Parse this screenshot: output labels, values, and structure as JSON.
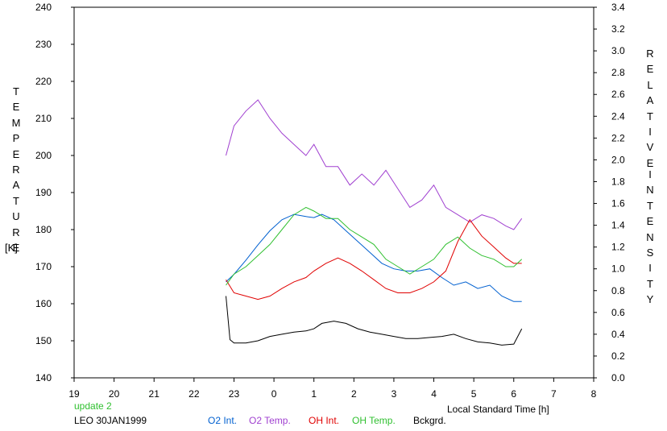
{
  "chart_data": {
    "type": "line",
    "left_axis": {
      "label_letters": [
        "T",
        "E",
        "M",
        "P",
        "E",
        "R",
        "A",
        "T",
        "U",
        "R",
        "E"
      ],
      "unit": "[K]",
      "range": [
        140,
        240
      ],
      "ticks": [
        "140",
        "150",
        "160",
        "170",
        "180",
        "190",
        "200",
        "210",
        "220",
        "230",
        "240"
      ]
    },
    "right_axis": {
      "label_word1": [
        "R",
        "E",
        "L",
        "A",
        "T",
        "I",
        "V",
        "E"
      ],
      "label_word2": [
        "I",
        "N",
        "T",
        "E",
        "N",
        "S",
        "I",
        "T",
        "Y"
      ],
      "range": [
        0.0,
        3.4
      ],
      "ticks": [
        "0.0",
        "0.2",
        "0.4",
        "0.6",
        "0.8",
        "1.0",
        "1.2",
        "1.4",
        "1.6",
        "1.8",
        "2.0",
        "2.2",
        "2.4",
        "2.6",
        "2.8",
        "3.0",
        "3.2",
        "3.4"
      ]
    },
    "x_axis": {
      "label": "Local Standard Time [h]",
      "range": [
        19,
        32
      ],
      "ticks": [
        "19",
        "20",
        "21",
        "22",
        "23",
        "0",
        "1",
        "2",
        "3",
        "4",
        "5",
        "6",
        "7",
        "8"
      ]
    },
    "series": [
      {
        "name": "O2 Int.",
        "axis": "right",
        "color": "#0060d0",
        "x": [
          22.8,
          23.0,
          23.3,
          23.6,
          23.9,
          24.2,
          24.5,
          24.8,
          25.0,
          25.2,
          25.5,
          25.8,
          26.1,
          26.4,
          26.7,
          27.0,
          27.3,
          27.6,
          27.9,
          28.2,
          28.5,
          28.8,
          29.1,
          29.4,
          29.7,
          30.0,
          30.2
        ],
        "y": [
          0.88,
          0.95,
          1.08,
          1.22,
          1.35,
          1.45,
          1.5,
          1.48,
          1.47,
          1.5,
          1.45,
          1.35,
          1.25,
          1.15,
          1.05,
          1.0,
          0.98,
          0.98,
          1.0,
          0.92,
          0.85,
          0.88,
          0.82,
          0.85,
          0.75,
          0.7,
          0.7
        ]
      },
      {
        "name": "O2 Temp.",
        "axis": "left",
        "color": "#a040d0",
        "x": [
          22.8,
          23.0,
          23.3,
          23.6,
          23.9,
          24.2,
          24.5,
          24.8,
          25.0,
          25.3,
          25.6,
          25.9,
          26.2,
          26.5,
          26.8,
          27.1,
          27.4,
          27.7,
          28.0,
          28.3,
          28.6,
          28.9,
          29.2,
          29.5,
          29.8,
          30.0,
          30.2
        ],
        "y": [
          200,
          208,
          212,
          215,
          210,
          206,
          203,
          200,
          203,
          197,
          197,
          192,
          195,
          192,
          196,
          191,
          186,
          188,
          192,
          186,
          184,
          182,
          184,
          183,
          181,
          180,
          183
        ]
      },
      {
        "name": "OH Int.",
        "axis": "right",
        "color": "#e00000",
        "x": [
          22.8,
          23.0,
          23.3,
          23.6,
          23.9,
          24.2,
          24.5,
          24.8,
          25.0,
          25.3,
          25.6,
          25.9,
          26.2,
          26.5,
          26.8,
          27.1,
          27.4,
          27.7,
          28.0,
          28.3,
          28.6,
          28.9,
          29.2,
          29.5,
          29.8,
          30.0,
          30.2
        ],
        "y": [
          0.9,
          0.78,
          0.75,
          0.72,
          0.75,
          0.82,
          0.88,
          0.92,
          0.98,
          1.05,
          1.1,
          1.05,
          0.98,
          0.9,
          0.82,
          0.78,
          0.78,
          0.82,
          0.88,
          0.98,
          1.25,
          1.45,
          1.3,
          1.2,
          1.1,
          1.05,
          1.05
        ]
      },
      {
        "name": "OH Temp.",
        "axis": "left",
        "color": "#30c030",
        "x": [
          22.8,
          23.0,
          23.3,
          23.6,
          23.9,
          24.2,
          24.5,
          24.8,
          25.0,
          25.3,
          25.6,
          25.9,
          26.2,
          26.5,
          26.8,
          27.1,
          27.4,
          27.7,
          28.0,
          28.3,
          28.6,
          28.9,
          29.2,
          29.5,
          29.8,
          30.0,
          30.2
        ],
        "y": [
          165,
          168,
          170,
          173,
          176,
          180,
          184,
          186,
          185,
          183,
          183,
          180,
          178,
          176,
          172,
          170,
          168,
          170,
          172,
          176,
          178,
          175,
          173,
          172,
          170,
          170,
          172
        ]
      },
      {
        "name": "Bckgrd.",
        "axis": "right",
        "color": "#000000",
        "x": [
          22.8,
          22.9,
          23.0,
          23.3,
          23.6,
          23.9,
          24.2,
          24.5,
          24.8,
          25.0,
          25.2,
          25.5,
          25.8,
          26.1,
          26.4,
          26.7,
          27.0,
          27.3,
          27.6,
          27.9,
          28.2,
          28.5,
          28.8,
          29.1,
          29.4,
          29.7,
          30.0,
          30.2
        ],
        "y": [
          0.75,
          0.35,
          0.32,
          0.32,
          0.34,
          0.38,
          0.4,
          0.42,
          0.43,
          0.45,
          0.5,
          0.52,
          0.5,
          0.45,
          0.42,
          0.4,
          0.38,
          0.36,
          0.36,
          0.37,
          0.38,
          0.4,
          0.36,
          0.33,
          0.32,
          0.3,
          0.31,
          0.45
        ]
      }
    ]
  },
  "footer": {
    "update_text": "update 2",
    "update_color": "#30c030",
    "station_text": "LEO 30JAN1999"
  }
}
